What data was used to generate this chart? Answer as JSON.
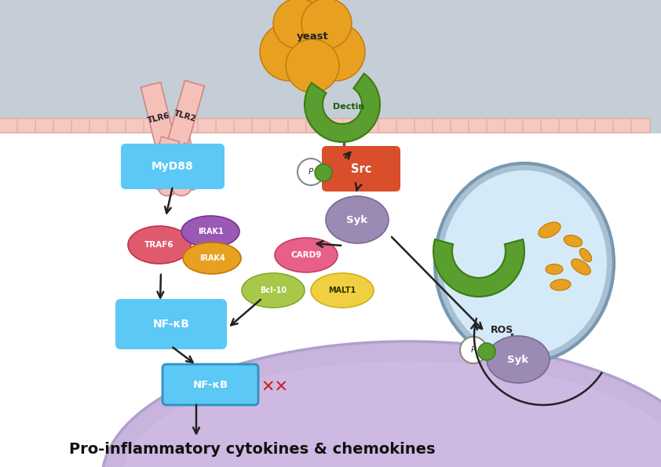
{
  "fig_width": 8.42,
  "fig_height": 5.95,
  "colors": {
    "myd88": "#5bc8f5",
    "src": "#d94f2b",
    "syk": "#9b8bb4",
    "traf6": "#e05a6e",
    "irak1": "#9b59b6",
    "irak4": "#e8a020",
    "card9": "#e8608a",
    "bcl10": "#a8c84a",
    "malt1": "#f0d040",
    "nfkb": "#5bc8f5",
    "dectin": "#5a9e30",
    "yeast": "#e8a020",
    "tlr_fill": "#f5c0b8",
    "tlr_edge": "#d08888",
    "phospho_fill": "white",
    "phospho_edge": "#888888",
    "green_receptor": "#5a9e30",
    "organelle_bg": "#d5eaf8",
    "organelle_edge": "#8ab0c8",
    "cell_bg_top": "#c5cdd6",
    "nucleus_bg": "#c8b4dc",
    "nucleus_edge": "#b0a0cc",
    "membrane_bump": "#f5c8c0",
    "membrane_bump_edge": "#e0a898",
    "arrow": "#222222",
    "dna": "#cc2222",
    "text_main": "#111111"
  },
  "labels": {
    "yeast": "yeast",
    "dectin": "Dectin",
    "tlr6": "TLR6",
    "tlr2": "TLR2",
    "myd88": "MyD88",
    "src": "Src",
    "syk": "Syk",
    "traf6": "TRAF6",
    "irak1": "IRAK1",
    "irak4": "IRAK4",
    "card9": "CARD9",
    "bcl10": "Bcl-10",
    "malt1": "MALT1",
    "nfkb": "NF-κB",
    "ros": "ROS",
    "bottom_text": "Pro-inflammatory cytokines & chemokines"
  }
}
